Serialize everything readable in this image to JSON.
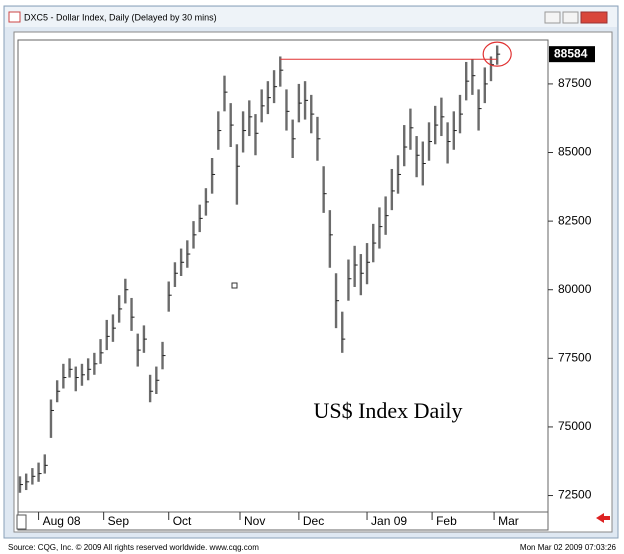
{
  "window": {
    "title": "DXC5 - Dollar Index, Daily (Delayed by 30 mins)"
  },
  "chart_data": {
    "type": "hlc",
    "annotation": "US$ Index Daily",
    "bars": [
      [
        73200,
        72600,
        72900
      ],
      [
        73300,
        72700,
        73000
      ],
      [
        73500,
        72900,
        73200
      ],
      [
        73700,
        73000,
        73300
      ],
      [
        74000,
        73300,
        73600
      ],
      [
        76000,
        74600,
        75600
      ],
      [
        76700,
        75900,
        76300
      ],
      [
        77300,
        76400,
        76800
      ],
      [
        77500,
        76800,
        77100
      ],
      [
        77200,
        76300,
        76800
      ],
      [
        77300,
        76500,
        76900
      ],
      [
        77500,
        76700,
        77100
      ],
      [
        77700,
        76900,
        77300
      ],
      [
        78200,
        77300,
        77700
      ],
      [
        78900,
        77800,
        78300
      ],
      [
        79100,
        78100,
        78600
      ],
      [
        79800,
        78800,
        79300
      ],
      [
        80400,
        79500,
        80000
      ],
      [
        79700,
        78500,
        79000
      ],
      [
        78400,
        77200,
        77800
      ],
      [
        78700,
        77700,
        78200
      ],
      [
        76900,
        75900,
        76300
      ],
      [
        77200,
        76200,
        76700
      ],
      [
        78100,
        77100,
        77600
      ],
      [
        80300,
        79200,
        79800
      ],
      [
        81000,
        80100,
        80600
      ],
      [
        81500,
        80500,
        81000
      ],
      [
        81800,
        80800,
        81300
      ],
      [
        82500,
        81500,
        82000
      ],
      [
        83100,
        82100,
        82600
      ],
      [
        83700,
        82700,
        83200
      ],
      [
        84800,
        83500,
        84200
      ],
      [
        86500,
        85100,
        85800
      ],
      [
        87800,
        86500,
        87200
      ],
      [
        86800,
        85200,
        86000
      ],
      [
        85300,
        83100,
        84500
      ],
      [
        86500,
        85000,
        85800
      ],
      [
        86900,
        85600,
        86300
      ],
      [
        86400,
        84900,
        85700
      ],
      [
        87300,
        86100,
        86700
      ],
      [
        87600,
        86400,
        87000
      ],
      [
        88000,
        86800,
        87400
      ],
      [
        88500,
        87400,
        88000
      ],
      [
        87300,
        85800,
        86500
      ],
      [
        86200,
        84800,
        85500
      ],
      [
        87500,
        86100,
        86800
      ],
      [
        87600,
        86200,
        86900
      ],
      [
        87100,
        85700,
        86400
      ],
      [
        86300,
        84700,
        85500
      ],
      [
        84500,
        82800,
        83500
      ],
      [
        82900,
        80800,
        82000
      ],
      [
        80600,
        78600,
        79600
      ],
      [
        79200,
        77700,
        78200
      ],
      [
        81100,
        79600,
        80400
      ],
      [
        81600,
        80100,
        80900
      ],
      [
        81300,
        79800,
        80600
      ],
      [
        81700,
        80200,
        81000
      ],
      [
        82400,
        81000,
        81700
      ],
      [
        83000,
        81500,
        82300
      ],
      [
        83400,
        82000,
        82700
      ],
      [
        84400,
        82900,
        83600
      ],
      [
        84900,
        83500,
        84200
      ],
      [
        86000,
        84500,
        85200
      ],
      [
        86600,
        85100,
        85900
      ],
      [
        85600,
        84100,
        84900
      ],
      [
        85400,
        83800,
        84600
      ],
      [
        86100,
        84700,
        85400
      ],
      [
        86700,
        85300,
        86000
      ],
      [
        87000,
        85600,
        86300
      ],
      [
        86100,
        84600,
        85400
      ],
      [
        86500,
        85100,
        85800
      ],
      [
        87100,
        85700,
        86400
      ],
      [
        88300,
        86900,
        87600
      ],
      [
        88400,
        87100,
        87800
      ],
      [
        87300,
        85800,
        86600
      ],
      [
        88100,
        86800,
        87500
      ],
      [
        88500,
        87600,
        88200
      ],
      [
        88900,
        88200,
        88584
      ]
    ],
    "color": "#6b6b6b",
    "resistance": {
      "value": 88400,
      "from": 42,
      "to": 77,
      "color": "#e03030"
    },
    "ylim": [
      71900,
      89100
    ],
    "yticks": [
      72500,
      75000,
      77500,
      80000,
      82500,
      85000,
      87500
    ],
    "xlim": [
      -0.32,
      85.2
    ],
    "xticks": [
      {
        "value": 3,
        "label": "Aug 08"
      },
      {
        "value": 13.5,
        "label": "Sep"
      },
      {
        "value": 24,
        "label": "Oct"
      },
      {
        "value": 35.5,
        "label": "Nov"
      },
      {
        "value": 45,
        "label": "Dec"
      },
      {
        "value": 56,
        "label": "Jan 09"
      },
      {
        "value": 66.5,
        "label": "Feb"
      },
      {
        "value": 76.5,
        "label": "Mar"
      }
    ]
  },
  "footer": {
    "source": "Source: CQG, Inc. © 2009 All rights reserved worldwide. www.cqg.com",
    "timestamp": "Mon Mar 02 2009 07:03:26"
  }
}
